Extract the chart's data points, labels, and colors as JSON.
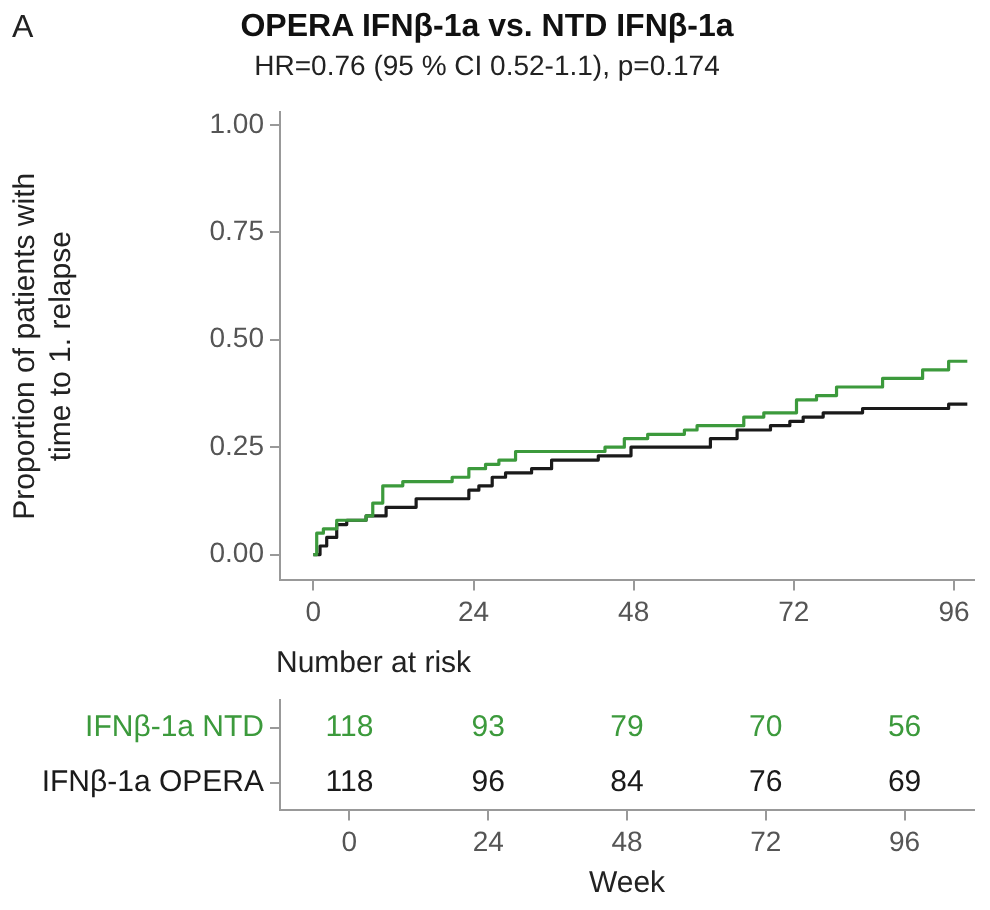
{
  "chart_data": [
    {
      "type": "step",
      "title": "OPERA IFNβ-1a vs. NTD IFNβ-1a",
      "subtitle": "HR=0.76 (95 % CI 0.52-1.1), p=0.174",
      "ylabel": "Proportion of patients with\ntime to 1. relapse",
      "annotations": [
        "A"
      ],
      "xlim": [
        -5,
        99
      ],
      "xticks": [
        0,
        24,
        48,
        72,
        96
      ],
      "ylim": [
        -0.06,
        1.03
      ],
      "yticks": [
        {
          "value": 0,
          "label": "0.00"
        },
        {
          "value": 0.25,
          "label": "0.25"
        },
        {
          "value": 0.5,
          "label": "0.50"
        },
        {
          "value": 0.75,
          "label": "0.75"
        },
        {
          "value": 1,
          "label": "1.00"
        }
      ],
      "grid": false,
      "legend": false,
      "marker": "none",
      "line_style": "solid",
      "series": [
        {
          "color": "#3c9a3c",
          "x": [
            0,
            0.5,
            1.5,
            3.5,
            5,
            7.9,
            8.9,
            10.4,
            13.4,
            20.8,
            23.3,
            25.8,
            27.8,
            30.3,
            43.7,
            46.6,
            50.1,
            55.6,
            57.5,
            64.5,
            67.5,
            72.4,
            75.4,
            78.4,
            81.3,
            85.3,
            91.3,
            95.2,
            98
          ],
          "values": [
            0,
            0.05,
            0.06,
            0.08,
            0.08,
            0.09,
            0.12,
            0.16,
            0.17,
            0.18,
            0.2,
            0.21,
            0.22,
            0.24,
            0.25,
            0.27,
            0.28,
            0.29,
            0.3,
            0.32,
            0.33,
            0.36,
            0.37,
            0.39,
            0.39,
            0.41,
            0.43,
            0.45,
            0.45
          ]
        },
        {
          "color": "#1a1a1a",
          "x": [
            0,
            1,
            2,
            3.5,
            5,
            7.9,
            10.9,
            15.4,
            23.3,
            24.8,
            26.8,
            28.8,
            32.7,
            35.7,
            42.7,
            47.6,
            56.5,
            59.5,
            63.5,
            68.5,
            71.4,
            73.4,
            76.4,
            82.3,
            95.2,
            98
          ],
          "values": [
            0,
            0.02,
            0.04,
            0.07,
            0.08,
            0.09,
            0.11,
            0.13,
            0.15,
            0.16,
            0.18,
            0.19,
            0.2,
            0.22,
            0.23,
            0.25,
            0.25,
            0.27,
            0.29,
            0.3,
            0.31,
            0.32,
            0.33,
            0.34,
            0.35,
            0.35
          ]
        }
      ]
    },
    {
      "type": "heatmap",
      "title": "Number at risk",
      "xlabel": "Week",
      "categories": [
        "0",
        "24",
        "48",
        "72",
        "96"
      ],
      "y_categories": [
        "IFNβ-1a NTD",
        "IFNβ-1a OPERA"
      ],
      "colors": [
        "#3c9a3c",
        "#1a1a1a"
      ],
      "data_labels": true,
      "cells": [
        [
          118,
          93,
          79,
          70,
          56
        ],
        [
          118,
          96,
          84,
          76,
          69
        ]
      ]
    }
  ]
}
